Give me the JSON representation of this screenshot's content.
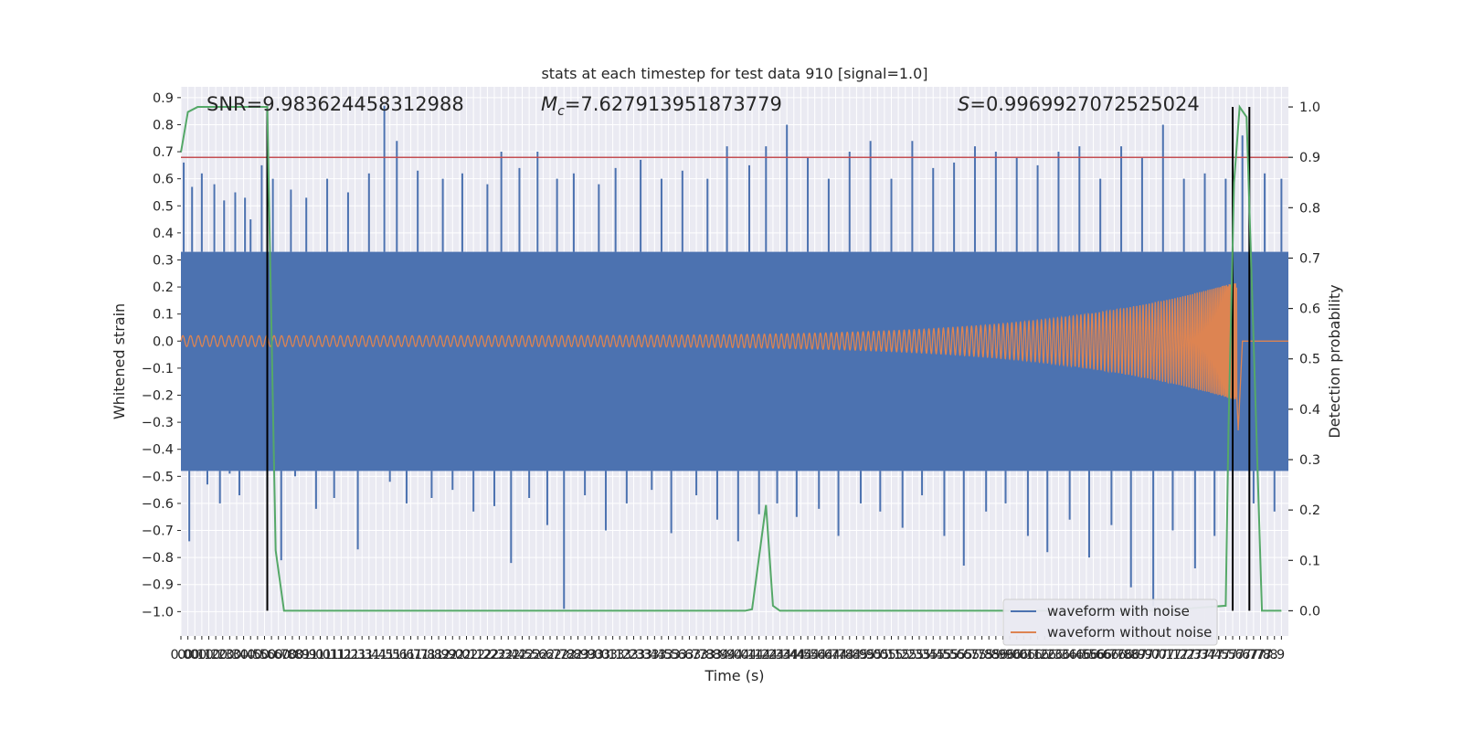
{
  "chart_data": {
    "type": "line",
    "title": "stats at each timestep for test data 910 [signal=1.0]",
    "xlabel": "Time (s)",
    "ylabel_left": "Whitened strain",
    "ylabel_right": "Detection probability",
    "xlim": [
      0.0,
      7.95
    ],
    "ylim_left": [
      -1.09,
      0.94
    ],
    "ylim_right": [
      -0.05,
      1.04
    ],
    "grid": true,
    "legend_position": "bottom-right",
    "x_ticks": [
      0.0,
      0.05,
      0.1,
      0.15,
      0.2,
      0.25,
      0.3,
      0.35,
      0.4,
      0.45,
      0.5,
      0.55,
      0.6,
      0.65,
      0.7,
      0.75,
      0.8,
      0.85,
      0.9,
      0.95,
      1.0,
      1.05,
      1.1,
      1.15,
      1.2,
      1.25,
      1.3,
      1.35,
      1.4,
      1.45,
      1.5,
      1.55,
      1.6,
      1.65,
      1.7,
      1.75,
      1.8,
      1.85,
      1.9,
      1.95,
      2.0,
      2.05,
      2.1,
      2.15,
      2.2,
      2.25,
      2.3,
      2.35,
      2.4,
      2.45,
      2.5,
      2.55,
      2.6,
      2.65,
      2.7,
      2.75,
      2.8,
      2.85,
      2.9,
      2.95,
      3.0,
      3.05,
      3.1,
      3.15,
      3.2,
      3.25,
      3.3,
      3.35,
      3.4,
      3.45,
      3.5,
      3.55,
      3.6,
      3.65,
      3.7,
      3.75,
      3.8,
      3.85,
      3.9,
      3.95,
      4.0,
      4.05,
      4.1,
      4.15,
      4.2,
      4.25,
      4.3,
      4.35,
      4.4,
      4.45,
      4.5,
      4.55,
      4.6,
      4.65,
      4.7,
      4.75,
      4.8,
      4.85,
      4.9,
      4.95,
      5.0,
      5.05,
      5.1,
      5.15,
      5.2,
      5.25,
      5.3,
      5.35,
      5.4,
      5.45,
      5.5,
      5.55,
      5.6,
      5.65,
      5.7,
      5.75,
      5.8,
      5.85,
      5.9,
      5.95,
      6.0,
      6.05,
      6.1,
      6.15,
      6.2,
      6.25,
      6.3,
      6.35,
      6.4,
      6.45,
      6.5,
      6.55,
      6.6,
      6.65,
      6.7,
      6.75,
      6.8,
      6.85,
      6.9,
      6.95,
      7.0,
      7.05,
      7.1,
      7.15,
      7.2,
      7.25,
      7.3,
      7.35,
      7.4,
      7.45,
      7.5,
      7.55,
      7.6,
      7.65,
      7.7,
      7.75,
      7.8,
      7.85,
      7.9
    ],
    "x_tick_labels": [
      "0.0",
      "0.0",
      "0.1",
      "0.1",
      "0.2",
      "0.2",
      "0.3",
      "0.3",
      "0.4",
      "0.4",
      "0.5",
      "0.5",
      "0.6",
      "0.6",
      "0.7",
      "0.8",
      "0.8",
      "0.9",
      "0.9",
      "1.0",
      "1.0",
      "1.1",
      "1.1",
      "1.2",
      "1.2",
      "1.3",
      "1.3",
      "1.4",
      "1.4",
      "1.5",
      "1.5",
      "1.6",
      "1.6",
      "1.7",
      "1.7",
      "1.8",
      "1.8",
      "1.9",
      "1.9",
      "2.0",
      "2.0",
      "2.1",
      "2.1",
      "2.2",
      "2.2",
      "2.3",
      "2.3",
      "2.4",
      "2.4",
      "2.5",
      "2.5",
      "2.6",
      "2.6",
      "2.7",
      "2.7",
      "2.8",
      "2.8",
      "2.9",
      "2.9",
      "3.0",
      "3.0",
      "3.1",
      "3.1",
      "3.2",
      "3.2",
      "3.3",
      "3.3",
      "3.4",
      "3.4",
      "3.5",
      "3.5",
      "3.6",
      "3.6",
      "3.7",
      "3.7",
      "3.8",
      "3.8",
      "3.9",
      "3.9",
      "4.0",
      "4.0",
      "4.1",
      "4.1",
      "4.2",
      "4.2",
      "4.3",
      "4.3",
      "4.4",
      "4.4",
      "4.5",
      "4.5",
      "4.6",
      "4.6",
      "4.7",
      "4.7",
      "4.8",
      "4.8",
      "4.9",
      "4.9",
      "5.0",
      "5.0",
      "5.1",
      "5.1",
      "5.2",
      "5.2",
      "5.3",
      "5.3",
      "5.4",
      "5.4",
      "5.5",
      "5.5",
      "5.6",
      "5.6",
      "5.7",
      "5.7",
      "5.8",
      "5.8",
      "5.9",
      "5.9",
      "6.0",
      "6.0",
      "6.1",
      "6.1",
      "6.2",
      "6.2",
      "6.3",
      "6.3",
      "6.4",
      "6.4",
      "6.5",
      "6.5",
      "6.6",
      "6.6",
      "6.7",
      "6.7",
      "6.8",
      "6.8",
      "6.9",
      "6.9",
      "7.0",
      "7.0",
      "7.1",
      "7.1",
      "7.2",
      "7.2",
      "7.3",
      "7.3",
      "7.4",
      "7.4",
      "7.5",
      "7.5",
      "7.6",
      "7.6",
      "7.7",
      "7.7",
      "7.8",
      "7.8",
      "7.9"
    ],
    "y_ticks_left": [
      -1.0,
      -0.9,
      -0.8,
      -0.7,
      -0.6,
      -0.5,
      -0.4,
      -0.3,
      -0.2,
      -0.1,
      0.0,
      0.1,
      0.2,
      0.3,
      0.4,
      0.5,
      0.6,
      0.7,
      0.8,
      0.9
    ],
    "y_tick_labels_left": [
      "−1.0",
      "−0.9",
      "−0.8",
      "−0.7",
      "−0.6",
      "−0.5",
      "−0.4",
      "−0.3",
      "−0.2",
      "−0.1",
      "0.0",
      "0.1",
      "0.2",
      "0.3",
      "0.4",
      "0.5",
      "0.6",
      "0.7",
      "0.8",
      "0.9"
    ],
    "y_ticks_right": [
      0.0,
      0.1,
      0.2,
      0.3,
      0.4,
      0.5,
      0.6,
      0.7,
      0.8,
      0.9,
      1.0
    ],
    "y_tick_labels_right": [
      "0.0",
      "0.1",
      "0.2",
      "0.3",
      "0.4",
      "0.5",
      "0.6",
      "0.7",
      "0.8",
      "0.9",
      "1.0"
    ],
    "annotations": [
      {
        "text": "SNR=9.983624458312988"
      },
      {
        "text": "M_c=7.627913951873779"
      },
      {
        "text": "S=0.9969927072525024"
      }
    ],
    "series": [
      {
        "name": "waveform with noise",
        "color": "#4c72b0",
        "axis": "left",
        "band_low": -0.48,
        "band_high": 0.33,
        "x": [
          0.02,
          0.06,
          0.08,
          0.12,
          0.15,
          0.19,
          0.24,
          0.28,
          0.31,
          0.35,
          0.39,
          0.42,
          0.46,
          0.5,
          0.58,
          0.62,
          0.66,
          0.72,
          0.79,
          0.82,
          0.9,
          0.97,
          1.05,
          1.1,
          1.2,
          1.27,
          1.35,
          1.46,
          1.5,
          1.55,
          1.62,
          1.7,
          1.8,
          1.88,
          1.95,
          2.02,
          2.1,
          2.2,
          2.25,
          2.3,
          2.37,
          2.43,
          2.5,
          2.56,
          2.63,
          2.7,
          2.75,
          2.82,
          2.9,
          3.0,
          3.05,
          3.12,
          3.2,
          3.3,
          3.38,
          3.45,
          3.52,
          3.6,
          3.7,
          3.78,
          3.85,
          3.92,
          4.0,
          4.08,
          4.15,
          4.2,
          4.28,
          4.35,
          4.42,
          4.5,
          4.58,
          4.65,
          4.72,
          4.8,
          4.88,
          4.95,
          5.02,
          5.1,
          5.18,
          5.25,
          5.32,
          5.4,
          5.48,
          5.55,
          5.62,
          5.7,
          5.78,
          5.85,
          5.92,
          6.0,
          6.08,
          6.15,
          6.22,
          6.3,
          6.38,
          6.45,
          6.52,
          6.6,
          6.68,
          6.75,
          6.82,
          6.9,
          6.98,
          7.05,
          7.12,
          7.2,
          7.28,
          7.35,
          7.42,
          7.5,
          7.55,
          7.62,
          7.7,
          7.78,
          7.85,
          7.9
        ],
        "y": [
          0.66,
          -0.74,
          0.57,
          -0.46,
          0.62,
          -0.53,
          0.58,
          -0.6,
          0.52,
          -0.49,
          0.55,
          -0.57,
          0.53,
          0.45,
          0.65,
          -0.54,
          0.6,
          -0.81,
          0.56,
          -0.5,
          0.53,
          -0.62,
          0.6,
          -0.58,
          0.55,
          -0.77,
          0.62,
          0.87,
          -0.52,
          0.74,
          -0.6,
          0.63,
          -0.58,
          0.6,
          -0.55,
          0.62,
          -0.63,
          0.58,
          -0.61,
          0.7,
          -0.82,
          0.64,
          -0.58,
          0.7,
          -0.68,
          0.6,
          -0.99,
          0.62,
          -0.57,
          0.58,
          -0.7,
          0.64,
          -0.6,
          0.67,
          -0.55,
          0.6,
          -0.71,
          0.63,
          -0.57,
          0.6,
          -0.66,
          0.72,
          -0.74,
          0.65,
          -0.64,
          0.72,
          -0.6,
          0.8,
          -0.65,
          0.68,
          -0.62,
          0.6,
          -0.72,
          0.7,
          -0.6,
          0.74,
          -0.63,
          0.6,
          -0.69,
          0.74,
          -0.57,
          0.64,
          -0.72,
          0.66,
          -0.83,
          0.72,
          -0.63,
          0.7,
          -0.6,
          0.68,
          -0.72,
          0.65,
          -0.78,
          0.7,
          -0.66,
          0.72,
          -0.8,
          0.6,
          -0.68,
          0.72,
          -0.91,
          0.68,
          -0.98,
          0.8,
          -0.7,
          0.6,
          -0.84,
          0.62,
          -0.72,
          0.6,
          -0.8,
          0.76,
          -0.6,
          0.62,
          -0.63,
          0.6
        ]
      },
      {
        "name": "waveform without noise",
        "color": "#dd8452",
        "axis": "left",
        "envelope_start": 0.02,
        "envelope_peak": 0.22,
        "merger_time": 7.58,
        "ringdown_end": 7.62
      },
      {
        "name": "",
        "color": "#55a868",
        "axis": "right",
        "x": [
          0.0,
          0.05,
          0.12,
          0.3,
          0.4,
          0.5,
          0.62,
          0.68,
          0.74,
          0.8,
          1.0,
          2.0,
          3.0,
          4.0,
          4.05,
          4.1,
          4.2,
          4.25,
          4.3,
          4.35,
          5.0,
          6.0,
          7.0,
          7.5,
          7.52,
          7.56,
          7.6,
          7.65,
          7.72,
          7.76,
          7.8,
          7.9
        ],
        "y": [
          0.91,
          0.99,
          1.0,
          1.0,
          1.0,
          1.0,
          1.0,
          0.12,
          0.0,
          0.0,
          0.0,
          0.0,
          0.0,
          0.0,
          0.0,
          0.003,
          0.21,
          0.01,
          0.0,
          0.0,
          0.0,
          0.0,
          0.0,
          0.01,
          0.36,
          0.85,
          1.0,
          0.98,
          0.36,
          0.0,
          0.0,
          0.0
        ]
      }
    ],
    "threshold_line": {
      "color": "#c44e52",
      "axis": "right",
      "value": 0.9
    },
    "vertical_markers": {
      "color": "#000000",
      "x": [
        0.62,
        7.55,
        7.67
      ],
      "y_range_right": [
        0.0,
        1.0
      ]
    },
    "legend": [
      {
        "label": "waveform with noise",
        "color": "#4c72b0"
      },
      {
        "label": "waveform without noise",
        "color": "#dd8452"
      }
    ],
    "colors": {
      "plot_background": "#eaeaf2",
      "grid": "#ffffff",
      "text": "#262626"
    }
  }
}
